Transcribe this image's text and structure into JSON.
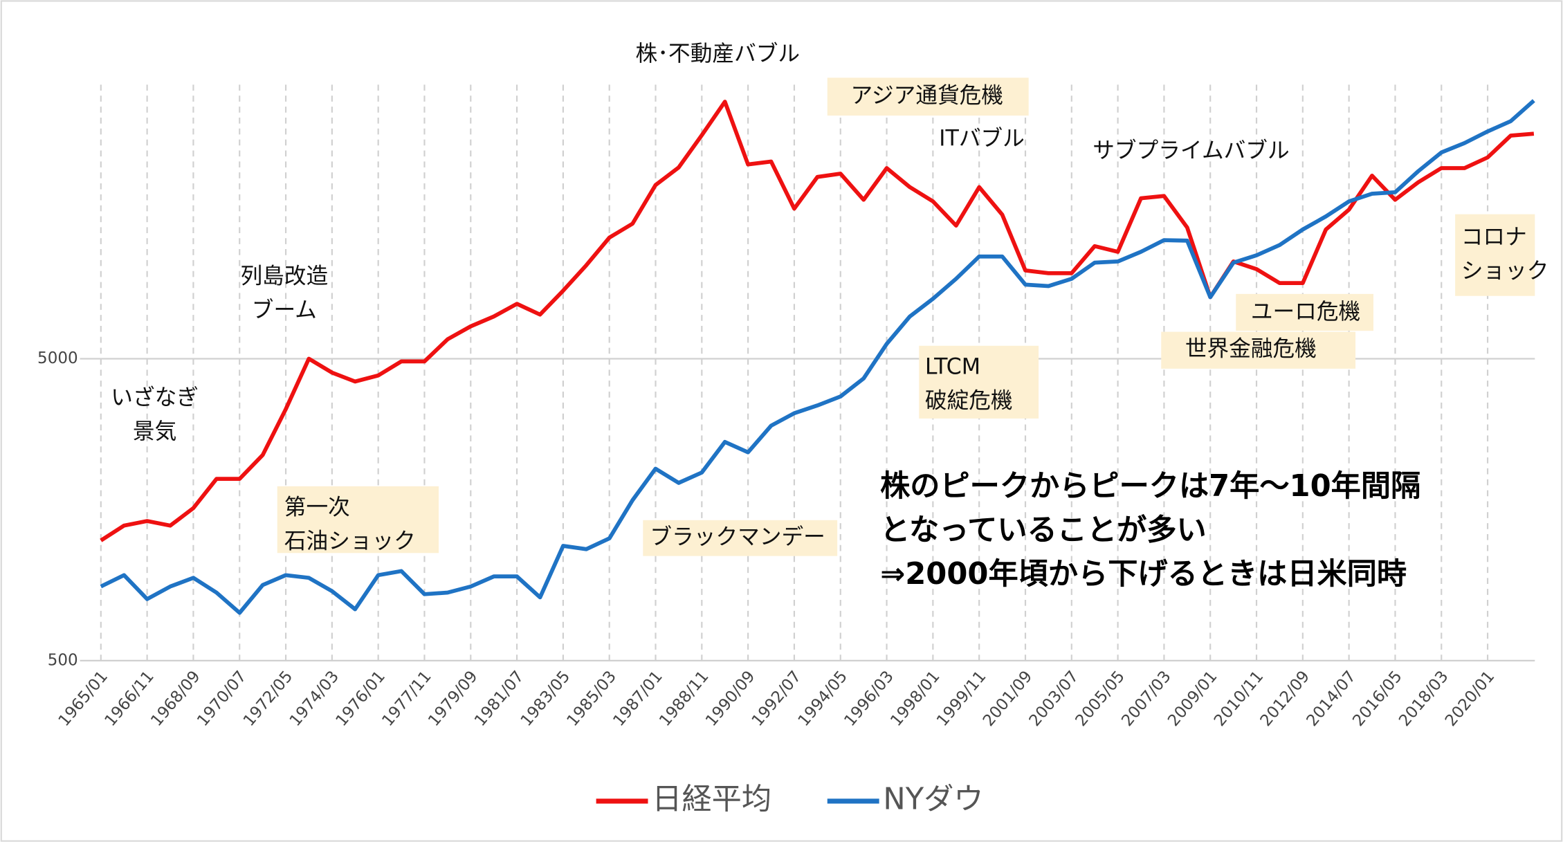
{
  "chart_data": {
    "type": "line",
    "log_scale": true,
    "grid": true,
    "legend": "bottom",
    "categories": [
      "1965/01",
      null,
      "1966/11",
      null,
      "1968/09",
      null,
      "1970/07",
      null,
      "1972/05",
      null,
      "1974/03",
      null,
      "1976/01",
      null,
      "1977/11",
      null,
      "1979/09",
      null,
      "1981/07",
      null,
      "1983/05",
      null,
      "1985/03",
      null,
      "1987/01",
      null,
      "1988/11",
      null,
      "1990/09",
      null,
      "1992/07",
      null,
      "1994/05",
      null,
      "1996/03",
      null,
      "1998/01",
      null,
      "1999/11",
      null,
      "2001/09",
      null,
      "2003/07",
      null,
      "2005/05",
      null,
      "2007/03",
      null,
      "2009/01",
      null,
      "2010/11",
      null,
      "2012/09",
      null,
      "2014/07",
      null,
      "2016/05",
      null,
      "2018/03",
      null,
      "2020/01",
      null,
      null
    ],
    "series": [
      {
        "name": "日経平均",
        "color": "#ee1111",
        "values": [
          1250,
          1400,
          1450,
          1400,
          1600,
          2000,
          2000,
          2400,
          3400,
          5000,
          4500,
          4200,
          4400,
          4900,
          4900,
          5800,
          6400,
          6900,
          7600,
          7000,
          8400,
          10200,
          12600,
          14000,
          18800,
          21500,
          27500,
          35500,
          22000,
          22500,
          15700,
          20000,
          20500,
          16800,
          21400,
          18500,
          16600,
          13800,
          18500,
          15000,
          9800,
          9600,
          9600,
          11800,
          11300,
          17000,
          17300,
          13600,
          8000,
          10500,
          9900,
          8900,
          8900,
          13400,
          15600,
          20200,
          16800,
          19200,
          21400,
          21400,
          23200,
          27400,
          27800
        ]
      },
      {
        "name": "NYダウ",
        "color": "#1f73c4",
        "values": [
          880,
          960,
          800,
          880,
          940,
          840,
          720,
          890,
          960,
          940,
          850,
          740,
          960,
          990,
          830,
          840,
          880,
          950,
          950,
          810,
          1200,
          1170,
          1270,
          1700,
          2160,
          1940,
          2100,
          2650,
          2450,
          3000,
          3300,
          3500,
          3750,
          4300,
          5600,
          6900,
          7900,
          9200,
          10900,
          10900,
          8800,
          8700,
          9200,
          10400,
          10500,
          11300,
          12350,
          12300,
          8000,
          10400,
          11000,
          11900,
          13400,
          14800,
          16600,
          17600,
          17800,
          20900,
          24100,
          25900,
          28300,
          30600,
          35800
        ]
      }
    ],
    "ylim": [
      500,
      50000
    ],
    "yticks": [
      500,
      5000
    ],
    "annotations": [
      [
        "株･不動産バブル"
      ],
      [
        "アジア通貨危機"
      ],
      [
        "ITバブル"
      ],
      [
        "サブプライムバブル"
      ],
      [
        "列島改造",
        "ブーム"
      ],
      [
        "いざなぎ",
        "景気"
      ],
      [
        "LTCM",
        "破綻危機"
      ],
      [
        "コロナ",
        "ショック"
      ],
      [
        "ユーロ危機"
      ],
      [
        "世界金融危機"
      ],
      [
        "第一次",
        "石油ショック"
      ],
      [
        "ブラックマンデー"
      ]
    ],
    "note": [
      "株のピークからピークは7年～10年間隔",
      "となっていることが多い",
      "⇒2000年頃から下げるときは日米同時"
    ]
  }
}
